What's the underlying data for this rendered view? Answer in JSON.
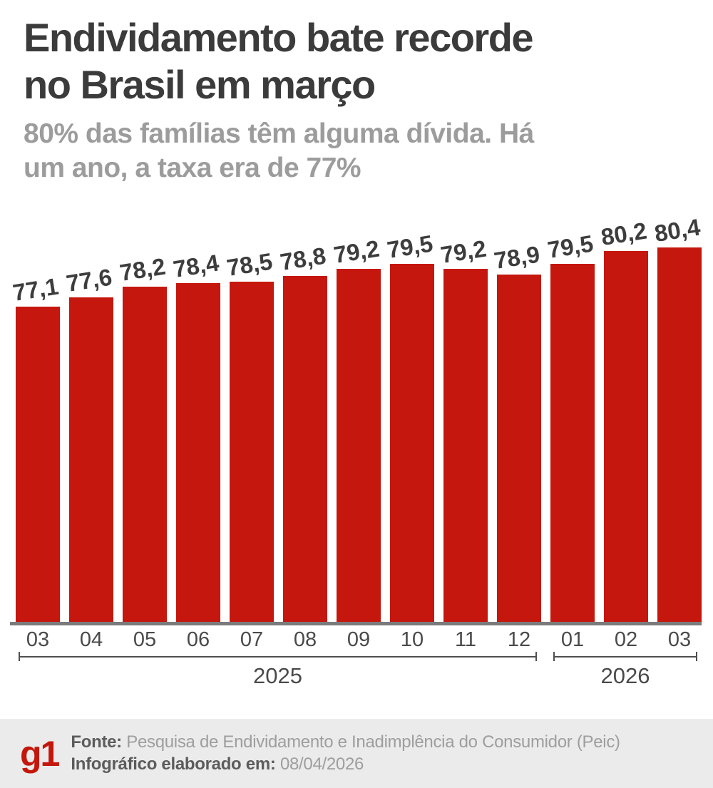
{
  "header": {
    "title_lines": [
      "Endividamento bate recorde",
      "no Brasil em março"
    ],
    "subtitle_lines": [
      "80% das famílias têm alguma dívida. Há",
      "um ano, a taxa era de 77%"
    ]
  },
  "chart_data": {
    "type": "bar",
    "title": "Endividamento bate recorde no Brasil em março",
    "subtitle": "80% das famílias têm alguma dívida. Há um ano, a taxa era de 77%",
    "unit": "%",
    "categories": [
      "03",
      "04",
      "05",
      "06",
      "07",
      "08",
      "09",
      "10",
      "11",
      "12",
      "01",
      "02",
      "03"
    ],
    "values": [
      77.1,
      77.6,
      78.2,
      78.4,
      78.5,
      78.8,
      79.2,
      79.5,
      79.2,
      78.9,
      79.5,
      80.2,
      80.4
    ],
    "value_labels": [
      "77,1",
      "77,6",
      "78,2",
      "78,4",
      "78,5",
      "78,8",
      "79,2",
      "79,5",
      "79,2",
      "78,9",
      "79,5",
      "80,2",
      "80,4"
    ],
    "year_groups": [
      {
        "label": "2025",
        "start_index": 0,
        "end_index": 9
      },
      {
        "label": "2026",
        "start_index": 10,
        "end_index": 12
      }
    ],
    "xlabel": "",
    "ylabel": "",
    "y_axis_visible": false,
    "grid": false,
    "legend": "none",
    "bar_color": "#c5170e",
    "label_color": "#3d3d3d",
    "axis_color": "#7b7b7b",
    "bracket_color": "#4f4f4f",
    "tick_color": "#4a4a4a"
  },
  "footer": {
    "logo": "g1",
    "logo_color": "#c4170c",
    "source_label": "Fonte:",
    "source_value": "Pesquisa de Endividamento e Inadimplência do Consumidor (Peic)",
    "date_label": "Infográfico elaborado em:",
    "date_value": "08/04/2026"
  }
}
